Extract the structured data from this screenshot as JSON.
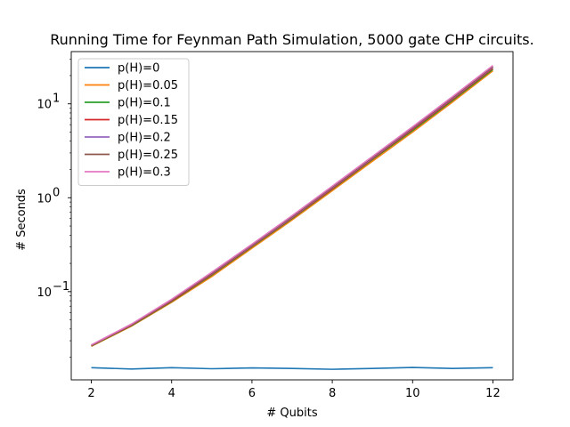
{
  "chart_data": {
    "type": "line",
    "title": "Running Time for Feynman Path Simulation, 5000 gate CHP circuits.",
    "xlabel": "# Qubits",
    "ylabel": "# Seconds",
    "y_scale": "log",
    "xlim": [
      1.5,
      12.5
    ],
    "ylim": [
      0.0115,
      36
    ],
    "x_ticks": [
      2,
      4,
      6,
      8,
      10,
      12
    ],
    "y_ticks": [
      {
        "value": 0.1,
        "base": "10",
        "exp": "−1"
      },
      {
        "value": 1,
        "base": "10",
        "exp": "0"
      },
      {
        "value": 10,
        "base": "10",
        "exp": "1"
      }
    ],
    "grid": false,
    "legend_position": "upper-left",
    "x": [
      2,
      3,
      4,
      5,
      6,
      7,
      8,
      9,
      10,
      11,
      12
    ],
    "series": [
      {
        "name": "p(H)=0",
        "color": "#1f77b4",
        "values": [
          0.0155,
          0.015,
          0.0155,
          0.0151,
          0.0154,
          0.0152,
          0.0149,
          0.0152,
          0.0156,
          0.0152,
          0.0155
        ]
      },
      {
        "name": "p(H)=0.05",
        "color": "#ff7f0e",
        "values": [
          0.0262,
          0.043,
          0.077,
          0.145,
          0.29,
          0.58,
          1.19,
          2.45,
          5.0,
          10.5,
          22.5
        ]
      },
      {
        "name": "p(H)=0.1",
        "color": "#2ca02c",
        "values": [
          0.0264,
          0.0435,
          0.0785,
          0.15,
          0.3,
          0.6,
          1.23,
          2.55,
          5.2,
          10.9,
          23.3
        ]
      },
      {
        "name": "p(H)=0.15",
        "color": "#d62728",
        "values": [
          0.0266,
          0.044,
          0.0795,
          0.153,
          0.305,
          0.61,
          1.25,
          2.6,
          5.35,
          11.2,
          24.0
        ]
      },
      {
        "name": "p(H)=0.2",
        "color": "#9467bd",
        "values": [
          0.0268,
          0.0445,
          0.081,
          0.156,
          0.31,
          0.62,
          1.28,
          2.65,
          5.5,
          11.5,
          24.6
        ]
      },
      {
        "name": "p(H)=0.25",
        "color": "#8c564b",
        "values": [
          0.0269,
          0.0448,
          0.0815,
          0.158,
          0.315,
          0.63,
          1.3,
          2.7,
          5.6,
          11.7,
          25.0
        ]
      },
      {
        "name": "p(H)=0.3",
        "color": "#e377c2",
        "values": [
          0.0271,
          0.0452,
          0.083,
          0.161,
          0.32,
          0.645,
          1.33,
          2.75,
          5.7,
          12.0,
          25.6
        ]
      }
    ]
  }
}
